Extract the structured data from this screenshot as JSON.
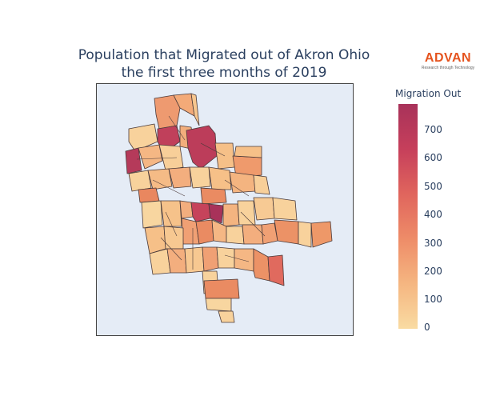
{
  "title_line1": "Population that Migrated out of Akron Ohio",
  "title_line2": "the first three months of 2019",
  "logo": {
    "word": "ADVAN",
    "tagline": "Research through Technology",
    "color": "#e5531e"
  },
  "colorbar": {
    "title": "Migration Out",
    "min": 0,
    "max": 800,
    "ticks": [
      "0",
      "100",
      "200",
      "300",
      "400",
      "500",
      "600",
      "700"
    ],
    "colorscale": [
      "#f9dba2",
      "#f5b681",
      "#ee8c68",
      "#e0655d",
      "#c63f5b",
      "#a8325a"
    ]
  },
  "map": {
    "region": "Akron Ohio",
    "geo_background": "#e5ecf6",
    "border_color": "#4a3a3a"
  }
}
